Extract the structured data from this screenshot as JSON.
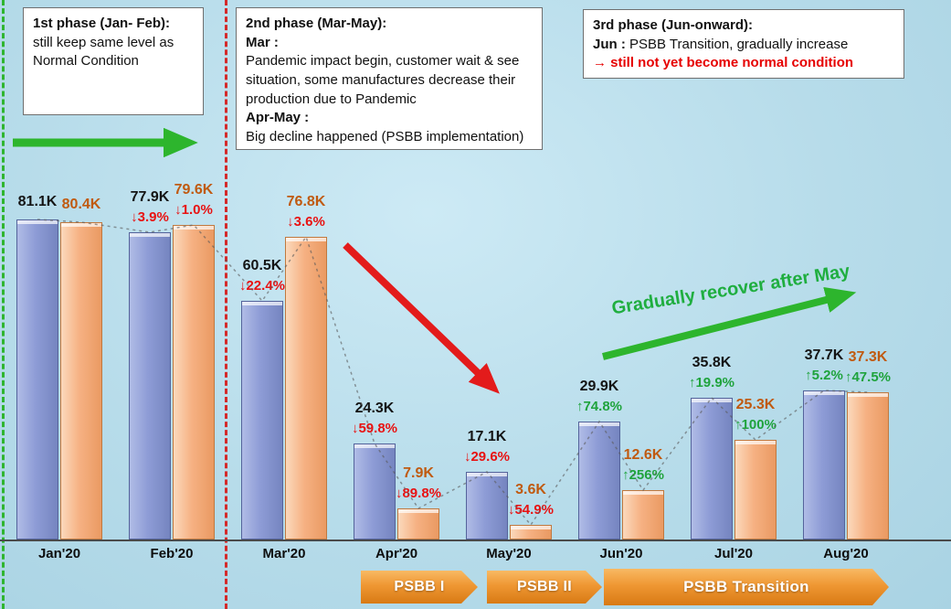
{
  "phase1": {
    "title": "1st phase (Jan- Feb):",
    "body": "still keep same level as Normal Condition"
  },
  "phase2": {
    "title": "2nd phase (Mar-May):",
    "mar_label": "Mar :",
    "mar_text": "Pandemic impact begin, customer wait & see situation, some manufactures decrease their production due to Pandemic",
    "aprmay_label": "Apr-May :",
    "aprmay_text": "Big decline happened (PSBB  implementation)"
  },
  "phase3": {
    "title": "3rd phase (Jun-onward):",
    "jun_label": "Jun :",
    "jun_text": "PSBB Transition, gradually increase",
    "warning": "→ still not yet become normal condition"
  },
  "recovery_note": "Gradually recover after May",
  "banners": [
    {
      "label": "PSBB I"
    },
    {
      "label": "PSBB II"
    },
    {
      "label": "PSBB Transition"
    }
  ],
  "colors": {
    "increase": "#1fa33c",
    "decrease": "#e81212",
    "blue_label": "#141414",
    "orange_label": "#c05a10",
    "blue_bar": "#8e9cd6",
    "orange_bar": "#f6b183"
  },
  "chart_data": {
    "type": "bar",
    "title": "",
    "categories": [
      "Jan'20",
      "Feb'20",
      "Mar'20",
      "Apr'20",
      "May'20",
      "Jun'20",
      "Jul'20",
      "Aug'20"
    ],
    "ylim": [
      0,
      85
    ],
    "value_unit": "K",
    "grid": false,
    "legend": "none",
    "series": [
      {
        "id": "blue",
        "values": [
          81.1,
          77.9,
          60.5,
          24.3,
          17.1,
          29.9,
          35.8,
          37.7
        ],
        "value_labels": [
          "81.1K",
          "77.9K",
          "60.5K",
          "24.3K",
          "17.1K",
          "29.9K",
          "35.8K",
          "37.7K"
        ],
        "change_labels": [
          "",
          "↓3.9%",
          "↓22.4%",
          "↓59.8%",
          "↓29.6%",
          "↑74.8%",
          "↑19.9%",
          "↑5.2%"
        ]
      },
      {
        "id": "orange",
        "values": [
          80.4,
          79.6,
          76.8,
          7.9,
          3.6,
          12.6,
          25.3,
          37.3
        ],
        "value_labels": [
          "80.4K",
          "79.6K",
          "76.8K",
          "7.9K",
          "3.6K",
          "12.6K",
          "25.3K",
          "37.3K"
        ],
        "change_labels": [
          "",
          "↓1.0%",
          "↓3.6%",
          "↓89.8%",
          "↓54.9%",
          "↑256%",
          "↑100%",
          "↑47.5%"
        ]
      }
    ]
  }
}
